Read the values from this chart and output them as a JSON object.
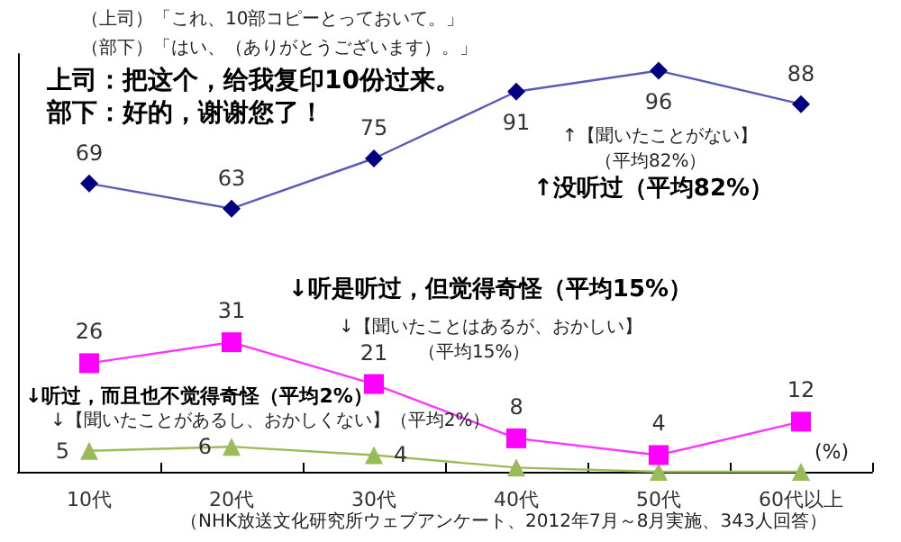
{
  "chart_data": {
    "type": "line",
    "categories": [
      "10代",
      "20代",
      "30代",
      "40代",
      "50代",
      "60代以上"
    ],
    "series": [
      {
        "color": "#000080",
        "marker": "diamond",
        "values": [
          69,
          63,
          75,
          91,
          96,
          88
        ],
        "value_labels": [
          "69",
          "63",
          "75",
          "91",
          "96",
          "88"
        ]
      },
      {
        "color": "#ff00ff",
        "marker": "square",
        "values": [
          26,
          31,
          21,
          8,
          4,
          12
        ],
        "value_labels": [
          "26",
          "31",
          "21",
          "8",
          "4",
          "12"
        ]
      },
      {
        "color": "#9bbb59",
        "marker": "triangle",
        "values": [
          5,
          6,
          4,
          1,
          0,
          0
        ],
        "value_labels": [
          "5",
          "6",
          "4",
          null,
          null,
          null
        ]
      }
    ],
    "annotations": [
      "（上司）「これ、10部コピーとっておいて。」",
      "（部下）「はい、（ありがとうございます）。」",
      "上司：把这个，给我复印10份过来。",
      "部下：好的，谢谢您了！",
      "↑【聞いたことがない】",
      "（平均82%）",
      "↑没听过（平均82%）",
      "↓听是听过，但觉得奇怪（平均15%）",
      "↓【聞いたことはあるが、おかしい】",
      "（平均15%）",
      "↓听过，而且也不觉得奇怪（平均2%）",
      "↓【聞いたことがあるし、おかしくない】（平均2%）",
      "(%)",
      "（NHK放送文化研究所ウェブアンケート、2012年7月～8月実施、343人回答）"
    ],
    "relative": false,
    "grid": false
  }
}
